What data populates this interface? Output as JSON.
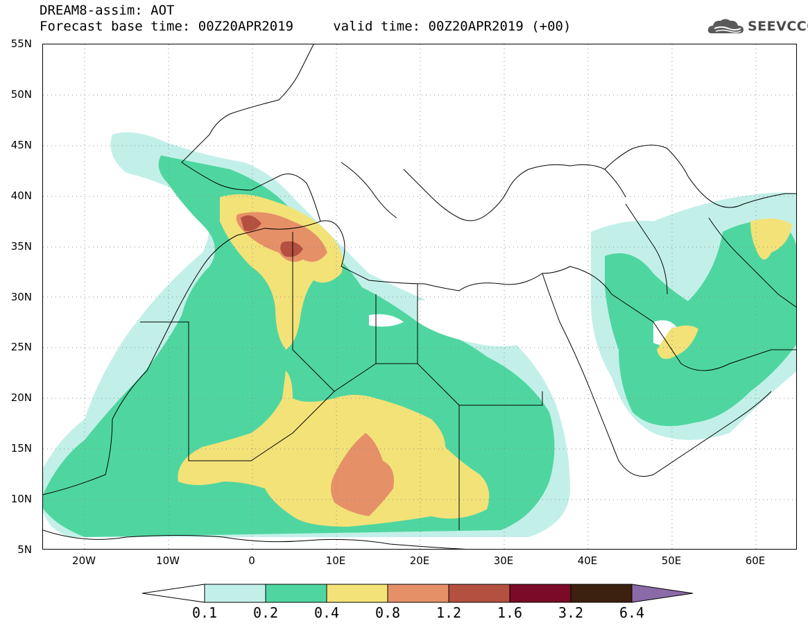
{
  "title": {
    "line1": "DREAM8-assim: AOT",
    "line2": "Forecast base time: 00Z20APR2019     valid time: 00Z20APR2019 (+00)"
  },
  "logo": {
    "text": "SEEVCCC",
    "icon": "cloud-icon"
  },
  "map": {
    "lon_range": [
      -25,
      65
    ],
    "lat_range": [
      5,
      55
    ],
    "lat_labels": [
      "55N",
      "50N",
      "45N",
      "40N",
      "35N",
      "30N",
      "25N",
      "20N",
      "15N",
      "10N",
      "5N"
    ],
    "lon_labels": [
      "20W",
      "10W",
      "0",
      "10E",
      "20E",
      "30E",
      "40E",
      "50E",
      "60E"
    ],
    "grid": "dotted"
  },
  "colorbar": {
    "labels": [
      "0.1",
      "0.2",
      "0.4",
      "0.8",
      "1.2",
      "1.6",
      "3.2",
      "6.4"
    ],
    "colors": [
      "#c2f0e8",
      "#4fd6a0",
      "#f3e278",
      "#e69068",
      "#b35040",
      "#7a0a25",
      "#3c2010",
      "#8b6aa8"
    ]
  }
}
